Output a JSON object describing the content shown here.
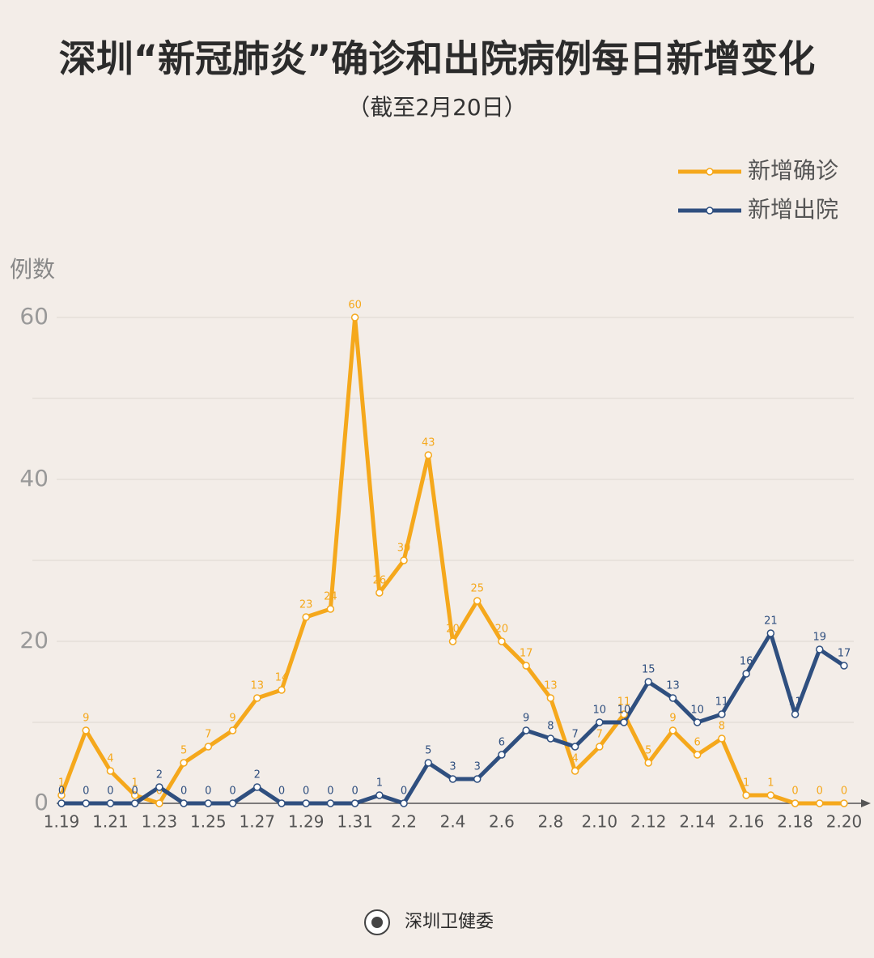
{
  "chart_data": {
    "type": "line",
    "title": "深圳“新冠肺炎”确诊和出院病例每日新增变化",
    "subtitle": "（截至2月20日）",
    "y_label": "例数",
    "source": "深圳卫健委",
    "categories": [
      "1.19",
      null,
      "1.21",
      null,
      "1.23",
      null,
      "1.25",
      null,
      "1.27",
      null,
      "1.29",
      null,
      "1.31",
      null,
      "2.2",
      null,
      "2.4",
      null,
      "2.6",
      null,
      "2.8",
      null,
      "2.10",
      null,
      "2.12",
      null,
      "2.14",
      null,
      "2.16",
      null,
      "2.18",
      null,
      "2.20"
    ],
    "series": [
      {
        "name": "新增确诊",
        "color": "#f5a81c",
        "values": [
          1,
          9,
          4,
          1,
          0,
          5,
          7,
          9,
          13,
          14,
          23,
          24,
          60,
          26,
          30,
          43,
          20,
          25,
          20,
          17,
          13,
          4,
          7,
          11,
          5,
          9,
          6,
          8,
          1,
          1,
          0,
          0,
          0
        ]
      },
      {
        "name": "新增出院",
        "color": "#2f4f7f",
        "values": [
          0,
          0,
          0,
          0,
          2,
          0,
          0,
          0,
          2,
          0,
          0,
          0,
          0,
          1,
          0,
          5,
          3,
          3,
          6,
          9,
          8,
          7,
          10,
          10,
          15,
          13,
          10,
          11,
          16,
          21,
          11,
          19,
          17
        ]
      }
    ],
    "ylim": [
      0,
      60
    ],
    "yticks": [
      0,
      20,
      40,
      60
    ],
    "minor_yticks": [
      10,
      30,
      50
    ],
    "grid": true,
    "legend_position": "top-right"
  }
}
